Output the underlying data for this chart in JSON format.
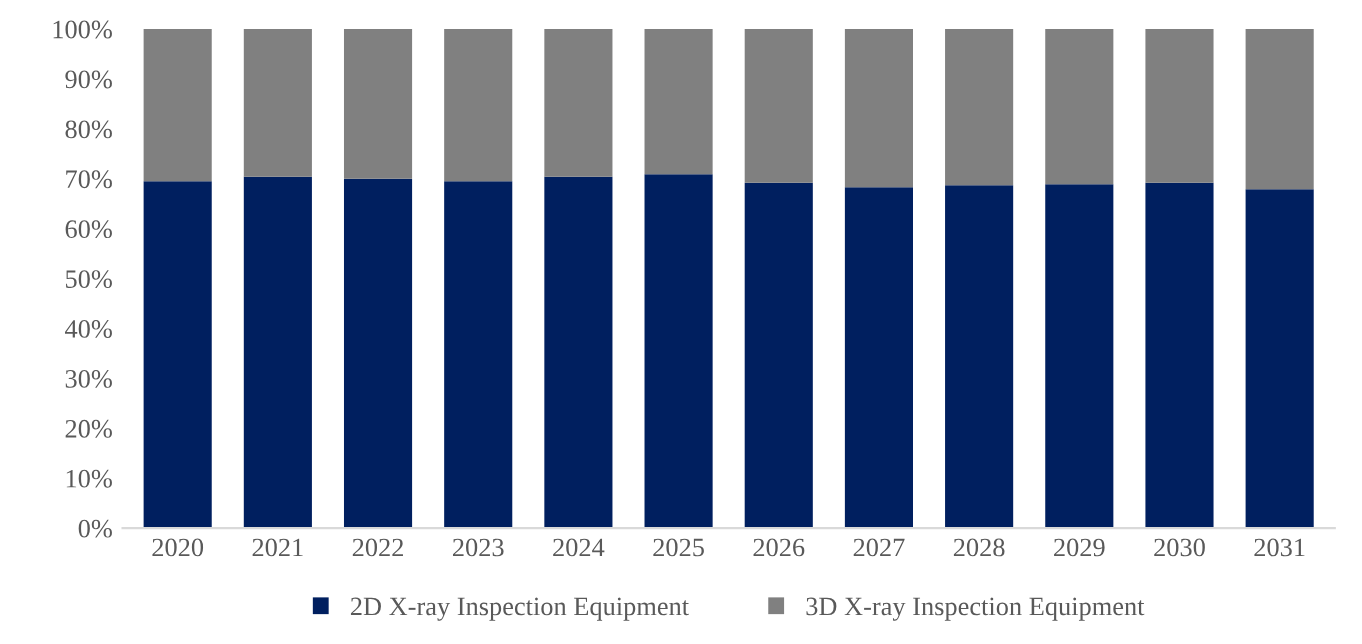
{
  "chart_data": {
    "type": "bar",
    "stacked": true,
    "categories": [
      "2020",
      "2021",
      "2022",
      "2023",
      "2024",
      "2025",
      "2026",
      "2027",
      "2028",
      "2029",
      "2030",
      "2031"
    ],
    "series": [
      {
        "name": "2D X-ray Inspection Equipment",
        "color": "#001f5f",
        "values": [
          69.5,
          70.4,
          70.0,
          69.5,
          70.4,
          70.9,
          69.2,
          68.3,
          68.7,
          68.9,
          69.2,
          67.9
        ]
      },
      {
        "name": "3D X-ray Inspection Equipment",
        "color": "#808080",
        "values": [
          30.5,
          29.6,
          30.0,
          30.5,
          29.6,
          29.1,
          30.8,
          31.7,
          31.3,
          31.1,
          30.8,
          32.1
        ]
      }
    ],
    "ylim": [
      0,
      100
    ],
    "yticks": [
      {
        "value": 0,
        "label": "0%"
      },
      {
        "value": 10,
        "label": "10%"
      },
      {
        "value": 20,
        "label": "20%"
      },
      {
        "value": 30,
        "label": "30%"
      },
      {
        "value": 40,
        "label": "40%"
      },
      {
        "value": 50,
        "label": "50%"
      },
      {
        "value": 60,
        "label": "60%"
      },
      {
        "value": 70,
        "label": "70%"
      },
      {
        "value": 80,
        "label": "80%"
      },
      {
        "value": 90,
        "label": "90%"
      },
      {
        "value": 100,
        "label": "100%"
      }
    ],
    "grid": false,
    "legend": "bottom"
  }
}
